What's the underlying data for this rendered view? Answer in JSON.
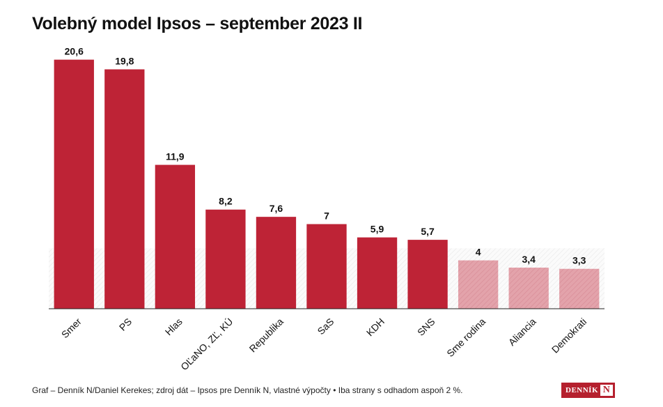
{
  "title": "Volebný model Ipsos – september 2023 II",
  "footer": "Graf – Denník N/Daniel Kerekes; zdroj dát – Ipsos pre Denník N, vlastné výpočty • Iba strany s odhadom aspoň 2 %.",
  "logo": {
    "word": "DENNÍK",
    "letter": "N"
  },
  "colors": {
    "main_bar": "#be2336",
    "light_bar": "#e3a3ab",
    "threshold_zone": "#eeeeee"
  },
  "chart_data": {
    "type": "bar",
    "title": "Volebný model Ipsos – september 2023 II",
    "categories": [
      "Smer",
      "PS",
      "Hlas",
      "OĽaNO, ZĽ, KÚ",
      "Republika",
      "SaS",
      "KDH",
      "SNS",
      "Sme rodina",
      "Aliancia",
      "Demokrati"
    ],
    "values": [
      20.6,
      19.8,
      11.9,
      8.2,
      7.6,
      7,
      5.9,
      5.7,
      4,
      3.4,
      3.3
    ],
    "value_labels": [
      "20,6",
      "19,8",
      "11,9",
      "8,2",
      "7,6",
      "7",
      "5,9",
      "5,7",
      "4",
      "3,4",
      "3,3"
    ],
    "below_threshold": [
      false,
      false,
      false,
      false,
      false,
      false,
      false,
      false,
      true,
      true,
      true
    ],
    "threshold": 5,
    "ylim": [
      0,
      21.5
    ],
    "xlabel": "",
    "ylabel": "",
    "grid": false,
    "legend": "none"
  }
}
